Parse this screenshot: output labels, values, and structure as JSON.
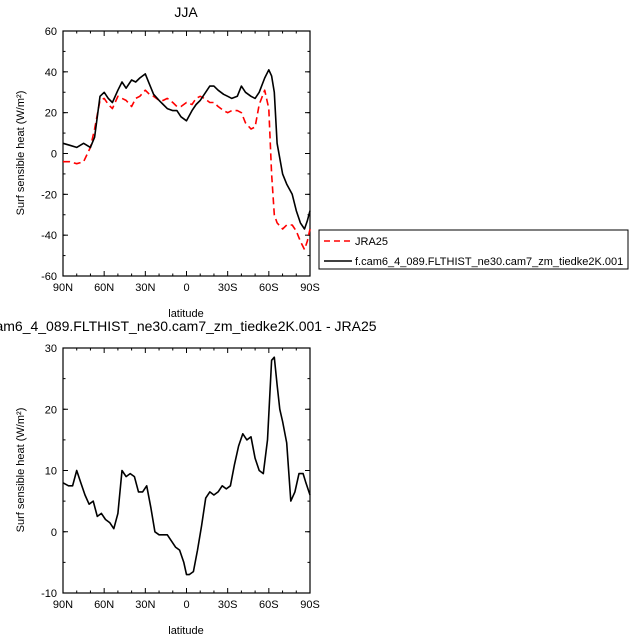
{
  "chart_data": [
    {
      "type": "line",
      "title": "JJA",
      "xlabel": "latitude",
      "ylabel": "Surf sensible heat (W/m²)",
      "xlim": [
        90,
        -90
      ],
      "ylim": [
        -60,
        60
      ],
      "xticks": [
        "90N",
        "60N",
        "30N",
        "0",
        "30S",
        "60S",
        "90S"
      ],
      "yticks": [
        "60",
        "40",
        "20",
        "0",
        "-20",
        "-40",
        "-60"
      ],
      "legend": "outside-right",
      "series": [
        {
          "name": "JRA25",
          "color": "#ff0000",
          "dash": true,
          "x": [
            90,
            85,
            80,
            75,
            70,
            67,
            63,
            60,
            57,
            54,
            50,
            47,
            44,
            40,
            37,
            34,
            30,
            27,
            24,
            20,
            17,
            14,
            10,
            7,
            4,
            0,
            -4,
            -7,
            -10,
            -13,
            -17,
            -20,
            -23,
            -27,
            -30,
            -33,
            -37,
            -40,
            -43,
            -47,
            -50,
            -53,
            -57,
            -60,
            -62,
            -64,
            -66,
            -70,
            -73,
            -77,
            -80,
            -83,
            -86,
            -88,
            -90
          ],
          "y": [
            -4,
            -4,
            -5,
            -4,
            3,
            12,
            26,
            27,
            24,
            22,
            28,
            27,
            26,
            23,
            27,
            28,
            31,
            29,
            28,
            26,
            26,
            27,
            25,
            23,
            23,
            25,
            24,
            27,
            28,
            27,
            25,
            25,
            23,
            21,
            20,
            21,
            21,
            20,
            15,
            12,
            13,
            24,
            31,
            22,
            -10,
            -30,
            -34,
            -37,
            -35,
            -35,
            -38,
            -43,
            -47,
            -43,
            -37
          ]
        },
        {
          "name": "f.cam6_4_089.FLTHIST_ne30.cam7_zm_tiedke2K.001",
          "color": "#000000",
          "dash": false,
          "x": [
            90,
            85,
            80,
            75,
            70,
            67,
            63,
            60,
            57,
            54,
            50,
            47,
            44,
            40,
            37,
            34,
            30,
            27,
            24,
            20,
            17,
            14,
            10,
            7,
            4,
            0,
            -4,
            -7,
            -10,
            -13,
            -17,
            -20,
            -23,
            -27,
            -30,
            -33,
            -37,
            -40,
            -43,
            -47,
            -50,
            -53,
            -57,
            -60,
            -62,
            -64,
            -66,
            -70,
            -73,
            -77,
            -80,
            -83,
            -86,
            -88,
            -90
          ],
          "y": [
            5,
            4,
            3,
            5,
            3,
            8,
            28,
            30,
            27,
            25,
            31,
            35,
            32,
            36,
            35,
            37,
            39,
            34,
            29,
            26,
            24,
            22,
            21,
            21,
            18,
            16,
            21,
            24,
            26,
            29,
            33,
            33,
            31,
            29,
            28,
            27,
            28,
            33,
            30,
            28,
            27,
            30,
            37,
            41,
            38,
            30,
            5,
            -10,
            -15,
            -20,
            -28,
            -34,
            -37,
            -33,
            -28
          ]
        }
      ]
    },
    {
      "type": "line",
      "title": "am6_4_089.FLTHIST_ne30.cam7_zm_tiedke2K.001 - JRA25",
      "xlabel": "latitude",
      "ylabel": "Surf sensible heat (W/m²)",
      "xlim": [
        90,
        -90
      ],
      "ylim": [
        -10,
        30
      ],
      "xticks": [
        "90N",
        "60N",
        "30N",
        "0",
        "30S",
        "60S",
        "90S"
      ],
      "yticks": [
        "30",
        "20",
        "10",
        "0",
        "-10"
      ],
      "series": [
        {
          "color": "#000000",
          "dash": false,
          "x": [
            90,
            86,
            83,
            80,
            77,
            74,
            71,
            68,
            65,
            62,
            59,
            56,
            53,
            50,
            47,
            44,
            41,
            38,
            35,
            32,
            29,
            26,
            23,
            20,
            17,
            14,
            11,
            8,
            5,
            2,
            0,
            -2,
            -5,
            -8,
            -11,
            -14,
            -17,
            -20,
            -23,
            -26,
            -29,
            -32,
            -35,
            -38,
            -41,
            -44,
            -47,
            -50,
            -53,
            -56,
            -59,
            -62,
            -64,
            -66,
            -68,
            -70,
            -73,
            -76,
            -79,
            -82,
            -85,
            -87,
            -90
          ],
          "y": [
            8,
            7.5,
            7.5,
            10,
            8,
            6,
            4.5,
            5,
            2.5,
            3,
            2,
            1.5,
            0.5,
            3,
            10,
            9,
            9.5,
            9,
            6.5,
            6.5,
            7.5,
            4,
            0,
            -0.5,
            -0.5,
            -0.5,
            -1.5,
            -2.5,
            -3,
            -5,
            -7,
            -7,
            -6.5,
            -3,
            1,
            5.5,
            6.5,
            6,
            6.5,
            7.5,
            7,
            7.5,
            11,
            14,
            16,
            15,
            15.5,
            12,
            10,
            9.5,
            15,
            28,
            28.5,
            24,
            20,
            18,
            14.5,
            5,
            6.5,
            9.5,
            9.5,
            8,
            6
          ]
        }
      ]
    }
  ]
}
